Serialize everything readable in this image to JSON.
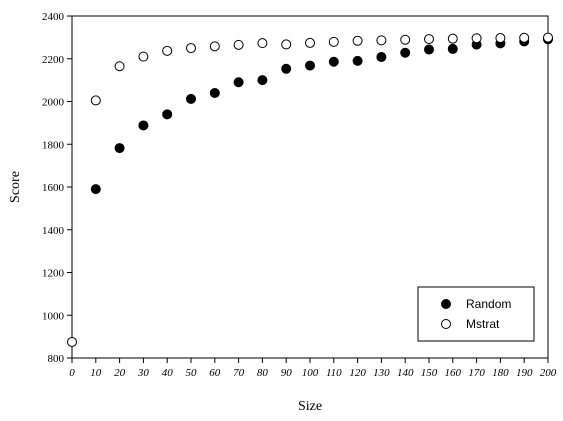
{
  "chart_data": {
    "type": "scatter",
    "xlabel": "Size",
    "ylabel": "Score",
    "xlim": [
      0,
      200
    ],
    "ylim": [
      800,
      2400
    ],
    "x_ticks": [
      0,
      10,
      20,
      30,
      40,
      50,
      60,
      70,
      80,
      90,
      100,
      110,
      120,
      130,
      140,
      150,
      160,
      170,
      180,
      190,
      200
    ],
    "y_ticks": [
      800,
      1000,
      1200,
      1400,
      1600,
      1800,
      2000,
      2200,
      2400
    ],
    "grid": false,
    "legend_position": "bottom-right",
    "series": [
      {
        "name": "Random",
        "marker": "filled-circle",
        "color": "#000000",
        "points": [
          [
            10,
            1590
          ],
          [
            20,
            1782
          ],
          [
            30,
            1888
          ],
          [
            40,
            1940
          ],
          [
            50,
            2012
          ],
          [
            60,
            2040
          ],
          [
            70,
            2090
          ],
          [
            80,
            2100
          ],
          [
            90,
            2153
          ],
          [
            100,
            2168
          ],
          [
            110,
            2186
          ],
          [
            120,
            2190
          ],
          [
            130,
            2208
          ],
          [
            140,
            2228
          ],
          [
            150,
            2243
          ],
          [
            160,
            2246
          ],
          [
            170,
            2266
          ],
          [
            180,
            2272
          ],
          [
            190,
            2281
          ],
          [
            200,
            2291
          ]
        ]
      },
      {
        "name": "Mstrat",
        "marker": "open-circle",
        "color": "#000000",
        "points": [
          [
            0,
            875
          ],
          [
            10,
            2005
          ],
          [
            20,
            2165
          ],
          [
            30,
            2210
          ],
          [
            40,
            2237
          ],
          [
            50,
            2250
          ],
          [
            60,
            2258
          ],
          [
            70,
            2265
          ],
          [
            80,
            2273
          ],
          [
            90,
            2267
          ],
          [
            100,
            2274
          ],
          [
            110,
            2279
          ],
          [
            120,
            2284
          ],
          [
            130,
            2286
          ],
          [
            140,
            2289
          ],
          [
            150,
            2292
          ],
          [
            160,
            2294
          ],
          [
            170,
            2296
          ],
          [
            180,
            2297
          ],
          [
            190,
            2298
          ],
          [
            200,
            2299
          ]
        ]
      }
    ]
  }
}
